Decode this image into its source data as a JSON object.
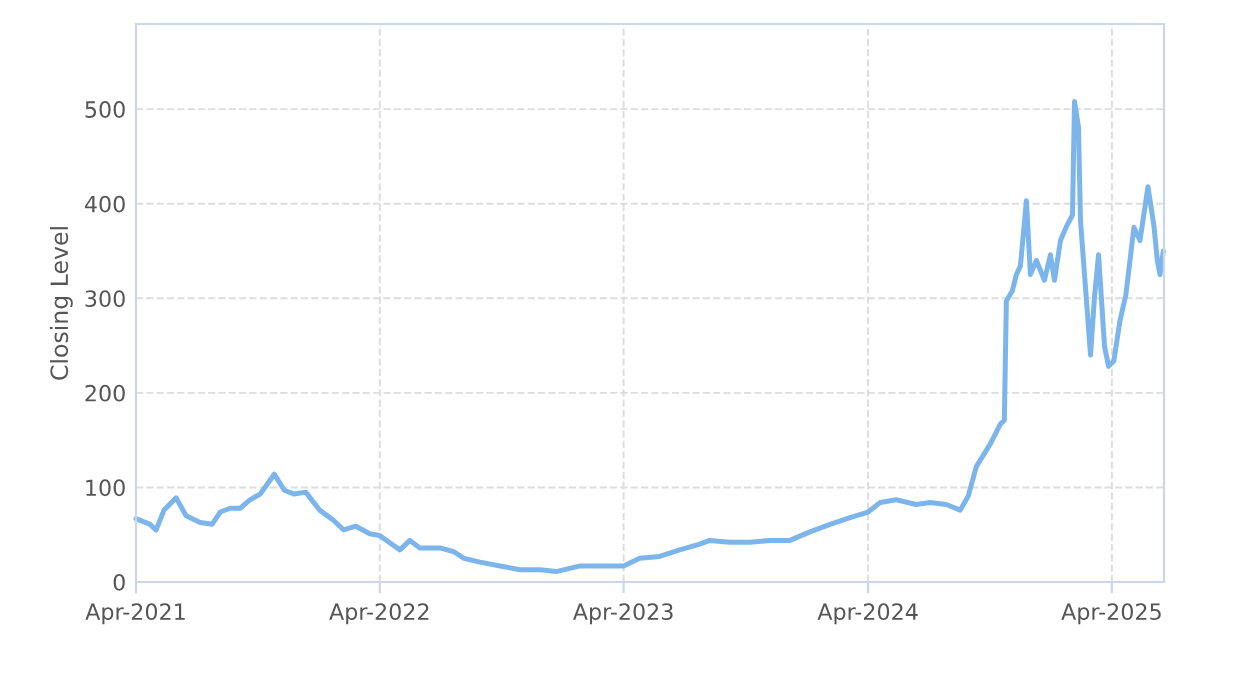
{
  "chart_data": {
    "type": "line",
    "ylabel": "Closing Level",
    "color": "#7cb5ec",
    "grid": true,
    "line_style": "solid",
    "marker": "none",
    "xlim": [
      "2021-04-01",
      "2025-06-18"
    ],
    "ylim": [
      0,
      590
    ],
    "yticks": [
      0,
      100,
      200,
      300,
      400,
      500
    ],
    "xticks": [
      {
        "value": "2021-04-01",
        "label": "Apr-2021"
      },
      {
        "value": "2022-04-01",
        "label": "Apr-2022"
      },
      {
        "value": "2023-04-01",
        "label": "Apr-2023"
      },
      {
        "value": "2024-04-01",
        "label": "Apr-2024"
      },
      {
        "value": "2025-04-01",
        "label": "Apr-2025"
      }
    ],
    "x": [
      "2021-04-01",
      "2021-04-22",
      "2021-05-01",
      "2021-05-13",
      "2021-05-31",
      "2021-06-15",
      "2021-07-06",
      "2021-07-24",
      "2021-08-05",
      "2021-08-20",
      "2021-09-04",
      "2021-09-19",
      "2021-10-04",
      "2021-10-25",
      "2021-11-09",
      "2021-11-24",
      "2021-12-11",
      "2022-01-01",
      "2022-01-22",
      "2022-02-06",
      "2022-02-24",
      "2022-03-17",
      "2022-04-01",
      "2022-04-19",
      "2022-05-01",
      "2022-05-16",
      "2022-05-31",
      "2022-06-30",
      "2022-07-21",
      "2022-08-05",
      "2022-08-29",
      "2022-09-28",
      "2022-10-28",
      "2022-11-27",
      "2022-12-21",
      "2023-01-26",
      "2023-02-25",
      "2023-04-01",
      "2023-04-25",
      "2023-05-25",
      "2023-06-24",
      "2023-07-24",
      "2023-08-08",
      "2023-09-07",
      "2023-10-07",
      "2023-11-06",
      "2023-12-06",
      "2024-01-05",
      "2024-02-04",
      "2024-03-05",
      "2024-04-01",
      "2024-04-19",
      "2024-05-13",
      "2024-06-12",
      "2024-07-03",
      "2024-07-27",
      "2024-08-17",
      "2024-08-29",
      "2024-09-10",
      "2024-10-01",
      "2024-10-16",
      "2024-10-22",
      "2024-10-25",
      "2024-11-03",
      "2024-11-09",
      "2024-11-15",
      "2024-11-24",
      "2024-11-30",
      "2024-12-09",
      "2024-12-21",
      "2024-12-30",
      "2025-01-05",
      "2025-01-14",
      "2025-01-23",
      "2025-02-01",
      "2025-02-04",
      "2025-02-10",
      "2025-02-13",
      "2025-02-19",
      "2025-02-28",
      "2025-03-06",
      "2025-03-12",
      "2025-03-21",
      "2025-03-27",
      "2025-04-04",
      "2025-04-13",
      "2025-04-22",
      "2025-05-04",
      "2025-05-13",
      "2025-05-25",
      "2025-06-03",
      "2025-06-08",
      "2025-06-12",
      "2025-06-17"
    ],
    "values": [
      67,
      61,
      55,
      76,
      89,
      70,
      63,
      61,
      74,
      78,
      78,
      87,
      93,
      114,
      97,
      93,
      95,
      76,
      65,
      55,
      59,
      51,
      49,
      40,
      34,
      44,
      36,
      36,
      32,
      25,
      21,
      17,
      13,
      13,
      11,
      17,
      17,
      17,
      25,
      27,
      34,
      40,
      44,
      42,
      42,
      44,
      44,
      53,
      61,
      68,
      74,
      84,
      87,
      82,
      84,
      82,
      76,
      91,
      122,
      146,
      167,
      171,
      297,
      308,
      325,
      334,
      403,
      325,
      340,
      319,
      346,
      319,
      361,
      376,
      388,
      508,
      481,
      382,
      325,
      240,
      302,
      346,
      249,
      228,
      234,
      276,
      304,
      375,
      361,
      418,
      376,
      340,
      325,
      350
    ]
  }
}
